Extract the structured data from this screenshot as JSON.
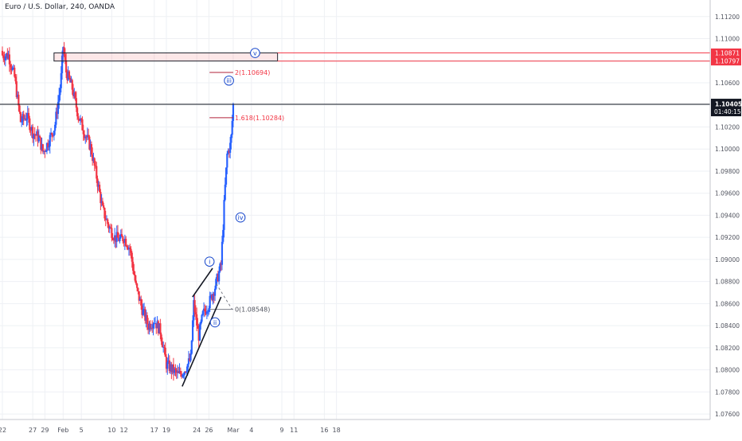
{
  "chart_data": {
    "type": "candlestick",
    "title": "Euro / U.S. Dollar, 240, OANDA",
    "ylim": [
      1.0755,
      1.1135
    ],
    "y_ticks": [
      1.112,
      1.11,
      1.108,
      1.106,
      1.104,
      1.102,
      1.1,
      1.098,
      1.096,
      1.094,
      1.092,
      1.09,
      1.088,
      1.086,
      1.084,
      1.082,
      1.08,
      1.078,
      1.076
    ],
    "y_tick_labels": [
      "1.11200",
      "1.11000",
      "1.10800",
      "1.10600",
      "1.10400",
      "1.10200",
      "1.10000",
      "1.09800",
      "1.09600",
      "1.09400",
      "1.09200",
      "1.09000",
      "1.08800",
      "1.08600",
      "1.08400",
      "1.08200",
      "1.08000",
      "1.07800",
      "1.07600"
    ],
    "x_ticks": [
      {
        "day": 0,
        "label": "22"
      },
      {
        "day": 5,
        "label": "27"
      },
      {
        "day": 7,
        "label": "29"
      },
      {
        "day": 10,
        "label": "Feb"
      },
      {
        "day": 13,
        "label": "5"
      },
      {
        "day": 18,
        "label": "10"
      },
      {
        "day": 20,
        "label": "12"
      },
      {
        "day": 25,
        "label": "17"
      },
      {
        "day": 27,
        "label": "19"
      },
      {
        "day": 32,
        "label": "24"
      },
      {
        "day": 34,
        "label": "26"
      },
      {
        "day": 38,
        "label": "Mar"
      },
      {
        "day": 41,
        "label": "4"
      },
      {
        "day": 46,
        "label": "9"
      },
      {
        "day": 48,
        "label": "11"
      },
      {
        "day": 53,
        "label": "16"
      },
      {
        "day": 55,
        "label": "18"
      }
    ],
    "close_path": [
      [
        0,
        1.1085
      ],
      [
        1.0,
        1.1085
      ],
      [
        2.0,
        1.1065
      ],
      [
        3.0,
        1.1025
      ],
      [
        4.0,
        1.103
      ],
      [
        5.0,
        1.1015
      ],
      [
        6.0,
        1.101
      ],
      [
        6.7,
        1.0997
      ],
      [
        7.6,
        1.1007
      ],
      [
        8.6,
        1.102
      ],
      [
        9.6,
        1.106
      ],
      [
        10.0,
        1.1093
      ],
      [
        10.5,
        1.107
      ],
      [
        11.5,
        1.1055
      ],
      [
        12.5,
        1.103
      ],
      [
        13.5,
        1.1015
      ],
      [
        14.5,
        1.1002
      ],
      [
        15.5,
        1.0975
      ],
      [
        16.5,
        1.0945
      ],
      [
        17.5,
        1.093
      ],
      [
        18.5,
        1.092
      ],
      [
        19.5,
        1.0918
      ],
      [
        20.0,
        1.092
      ],
      [
        21.0,
        1.091
      ],
      [
        22.0,
        1.0875
      ],
      [
        23.0,
        1.0855
      ],
      [
        24.0,
        1.084
      ],
      [
        25.0,
        1.0845
      ],
      [
        26.0,
        1.0835
      ],
      [
        27.0,
        1.0805
      ],
      [
        28.0,
        1.08
      ],
      [
        29.0,
        1.0795
      ],
      [
        30.0,
        1.08
      ],
      [
        31.0,
        1.081
      ],
      [
        31.5,
        1.086
      ],
      [
        32.3,
        1.083
      ],
      [
        33.0,
        1.085
      ],
      [
        34.0,
        1.086
      ],
      [
        35.0,
        1.0875
      ],
      [
        36.0,
        1.0895
      ],
      [
        36.6,
        1.096
      ],
      [
        37.0,
        1.0995
      ],
      [
        37.6,
        1.1005
      ],
      [
        38.0,
        1.104
      ]
    ],
    "last_price": 1.10405,
    "last_price_label": "1.10405",
    "countdown_label": "01:40:15",
    "zone": {
      "top": 1.10871,
      "bottom": 1.10797,
      "top_label": "1.10871",
      "bottom_label": "1.10797",
      "from_day": 8.5,
      "to_day": 45.3
    },
    "fib_levels": [
      {
        "price": 1.10694,
        "label": "2(1.10694)",
        "from_day": 34.1,
        "to_day": 38.0
      },
      {
        "price": 1.10284,
        "label": "1.618(1.10284)",
        "from_day": 34.1,
        "to_day": 38.0
      },
      {
        "price": 1.08548,
        "label": "0(1.08548)",
        "from_day": 34.1,
        "to_day": 38.0
      }
    ],
    "triangle_lines": [
      {
        "from": [
          29.6,
          1.0785
        ],
        "to": [
          36.0,
          1.0866
        ]
      },
      {
        "from": [
          31.3,
          1.0866
        ],
        "to": [
          34.6,
          1.0892
        ]
      }
    ],
    "dashed_line": {
      "from": [
        35.2,
        1.0878
      ],
      "to": [
        37.8,
        1.0855
      ]
    },
    "waves": [
      {
        "label": "i",
        "day": 34.1,
        "price": 1.0898
      },
      {
        "label": "ii",
        "day": 35.0,
        "price": 1.0843
      },
      {
        "label": "iii",
        "day": 37.3,
        "price": 1.1062
      },
      {
        "label": "iv",
        "day": 39.2,
        "price": 1.0938
      },
      {
        "label": "v",
        "day": 41.6,
        "price": 1.1087
      }
    ]
  }
}
